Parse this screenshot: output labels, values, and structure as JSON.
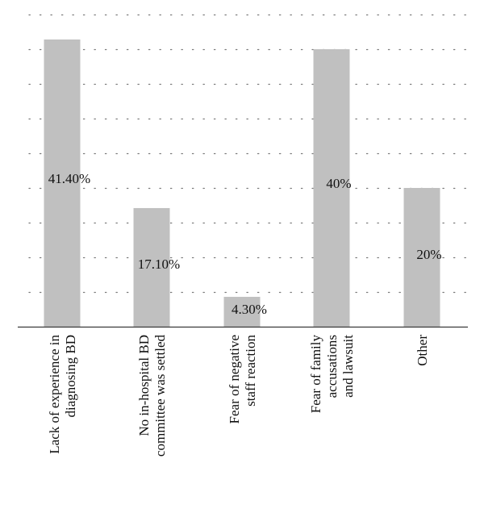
{
  "chart_data": {
    "type": "bar",
    "categories": [
      [
        "Lack of experience in",
        "diagnosing BD"
      ],
      [
        "No in-hospital BD",
        "committee was settled"
      ],
      [
        "Fear of negative",
        "staff reaction"
      ],
      [
        "Fear of family",
        "accusations",
        "and lawsuit"
      ],
      [
        "Other"
      ]
    ],
    "values": [
      41.4,
      17.1,
      4.3,
      40,
      20
    ],
    "data_labels": [
      "41.40%",
      "17.10%",
      "4.30%",
      "40%",
      "20%"
    ],
    "bar_heights": [
      41.4,
      17.1,
      4.3,
      40,
      20
    ],
    "ylim": [
      0,
      45
    ],
    "grid": true,
    "gridlines": [
      5,
      10,
      15,
      20,
      25,
      30,
      35,
      40,
      45
    ],
    "bar_color": "#c0c0c0",
    "title": "",
    "xlabel": "",
    "ylabel": ""
  }
}
